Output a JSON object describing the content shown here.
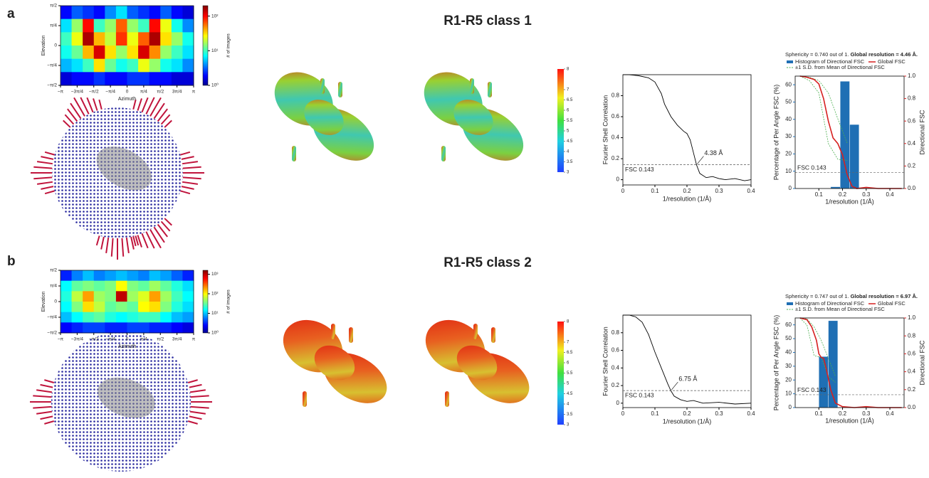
{
  "panel_labels": [
    "a",
    "b"
  ],
  "panel_titles": [
    "R1-R5 class 1",
    "R1-R5 class 2"
  ],
  "chart_data": [
    {
      "type": "heatmap",
      "xlabel": "Azimuth",
      "ylabel": "Elevation",
      "colorbar_label": "# of images",
      "xlim": [
        -3.14159,
        3.14159
      ],
      "xticks": [
        {
          "value": -3.14159,
          "label": "−π"
        },
        {
          "value": -2.35619,
          "label": "−3π/4"
        },
        {
          "value": -1.5708,
          "label": "−π/2"
        },
        {
          "value": -0.7854,
          "label": "−π/4"
        },
        0,
        {
          "value": 0.7854,
          "label": "π/4"
        },
        {
          "value": 1.5708,
          "label": "π/2"
        },
        {
          "value": 2.35619,
          "label": "3π/4"
        },
        {
          "value": 3.14159,
          "label": "π"
        }
      ],
      "ylim": [
        -1.5708,
        1.5708
      ],
      "yticks": [
        {
          "value": -1.5708,
          "label": "−π/2"
        },
        {
          "value": -0.7854,
          "label": "−π/4"
        },
        0,
        {
          "value": 0.7854,
          "label": "π/4"
        },
        {
          "value": 1.5708,
          "label": "π/2"
        }
      ],
      "clim": [
        0,
        2.3
      ],
      "colorbar_ticks": [
        {
          "value": 0,
          "label": "10⁰"
        },
        {
          "value": 1,
          "label": "10¹"
        },
        {
          "value": 2,
          "label": "10²"
        }
      ],
      "values": [
        [
          0.3,
          0.5,
          0.4,
          0.3,
          0.6,
          0.8,
          0.5,
          0.4,
          0.3,
          0.5,
          0.3,
          0.2
        ],
        [
          0.8,
          1.2,
          2.0,
          1.0,
          1.2,
          1.8,
          1.2,
          1.0,
          2.0,
          1.4,
          0.9,
          0.6
        ],
        [
          1.0,
          1.4,
          2.2,
          1.6,
          1.3,
          1.9,
          1.4,
          1.8,
          2.2,
          1.5,
          1.2,
          0.9
        ],
        [
          0.9,
          1.1,
          1.6,
          2.1,
          1.5,
          1.2,
          1.5,
          2.1,
          1.7,
          1.2,
          1.0,
          0.8
        ],
        [
          0.7,
          0.8,
          1.0,
          1.5,
          1.1,
          0.9,
          1.0,
          1.4,
          1.2,
          0.9,
          0.8,
          0.6
        ],
        [
          0.2,
          0.3,
          0.3,
          0.4,
          0.3,
          0.3,
          0.4,
          0.4,
          0.3,
          0.3,
          0.2,
          0.2
        ]
      ]
    },
    {
      "type": "colorbar",
      "lim": [
        3,
        8
      ],
      "ticks": [
        3,
        3.5,
        4,
        4.5,
        5,
        5.5,
        6,
        6.5,
        7,
        8
      ]
    },
    {
      "type": "line",
      "xlabel": "1/resolution (1/Å)",
      "ylabel": "Fourier Shell Correlation",
      "color": "#000000",
      "xlim": [
        0,
        0.4
      ],
      "xticks": [
        0,
        0.1,
        0.2,
        0.3,
        0.4
      ],
      "ylim": [
        -0.05,
        1.0
      ],
      "yticks": [
        0,
        0.2,
        0.4,
        0.6,
        0.8
      ],
      "threshold": {
        "value": 0.143,
        "label": "FSC 0.143"
      },
      "resolution_label": "4.38 Å",
      "x": [
        0,
        0.02,
        0.05,
        0.08,
        0.1,
        0.12,
        0.13,
        0.15,
        0.17,
        0.19,
        0.2,
        0.21,
        0.22,
        0.23,
        0.24,
        0.26,
        0.28,
        0.3,
        0.32,
        0.35,
        0.38,
        0.4
      ],
      "values": [
        1,
        1,
        0.99,
        0.97,
        0.93,
        0.82,
        0.72,
        0.6,
        0.52,
        0.46,
        0.44,
        0.38,
        0.26,
        0.14,
        0.06,
        0.02,
        0.03,
        0.01,
        0.0,
        0.01,
        -0.01,
        0
      ]
    },
    {
      "type": "dfsc",
      "title": "Sphericity = 0.740 out of 1. ",
      "title_bold": "Global resolution = 4.46 Å.",
      "xlabel": "1/resolution (1/Å)",
      "ylabel": "Percentage of Per Angle FSC (%)",
      "y2label": "Directional FSC",
      "xlim": [
        0,
        0.46
      ],
      "xticks": [
        0.1,
        0.2,
        0.3,
        0.4
      ],
      "ylim": [
        0,
        65
      ],
      "yticks": [
        0,
        10,
        20,
        30,
        40,
        50,
        60
      ],
      "y2lim": [
        0,
        1.0
      ],
      "y2ticks": [
        {
          "value": 0,
          "label": "0.0"
        },
        0.2,
        0.4,
        0.6,
        0.8,
        {
          "value": 1,
          "label": "1.0"
        }
      ],
      "threshold": {
        "value": 0.143,
        "label": "FSC 0.143"
      },
      "histogram": {
        "name": "Histogram of Directional FSC",
        "color": "#1f6fb4",
        "bins": [
          0.15,
          0.19,
          0.23,
          0.27
        ],
        "counts": [
          1,
          62,
          37
        ]
      },
      "series": [
        {
          "name": "Global FSC",
          "color": "#d62020",
          "axis": "y2",
          "x": [
            0.02,
            0.05,
            0.08,
            0.1,
            0.12,
            0.14,
            0.16,
            0.18,
            0.2,
            0.22,
            0.24,
            0.26,
            0.3,
            0.35,
            0.4,
            0.45
          ],
          "values": [
            1,
            0.99,
            0.97,
            0.93,
            0.8,
            0.6,
            0.45,
            0.4,
            0.3,
            0.12,
            0.02,
            0.0,
            0.01,
            0.0,
            0.0,
            0.0
          ]
        }
      ],
      "band": {
        "name": "±1 S.D. from Mean of Directional FSC",
        "color": "#4caf50",
        "x": [
          0.02,
          0.06,
          0.1,
          0.14,
          0.18,
          0.22
        ],
        "upper": [
          1,
          0.99,
          0.96,
          0.85,
          0.62,
          0.4
        ],
        "lower": [
          1,
          0.96,
          0.85,
          0.4,
          0.26,
          0.25
        ]
      }
    },
    {
      "type": "heatmap",
      "xlabel": "Azimuth",
      "ylabel": "Elevation",
      "colorbar_label": "# of images",
      "xlim": [
        -3.14159,
        3.14159
      ],
      "xticks": [
        {
          "value": -3.14159,
          "label": "−π"
        },
        {
          "value": -2.35619,
          "label": "−3π/4"
        },
        {
          "value": -1.5708,
          "label": "−π/2"
        },
        {
          "value": -0.7854,
          "label": "−π/4"
        },
        0,
        {
          "value": 0.7854,
          "label": "π/4"
        },
        {
          "value": 1.5708,
          "label": "π/2"
        },
        {
          "value": 2.35619,
          "label": "3π/4"
        },
        {
          "value": 3.14159,
          "label": "π"
        }
      ],
      "ylim": [
        -1.5708,
        1.5708
      ],
      "yticks": [
        {
          "value": -1.5708,
          "label": "−π/2"
        },
        {
          "value": -0.7854,
          "label": "−π/4"
        },
        0,
        {
          "value": 0.7854,
          "label": "π/4"
        },
        {
          "value": 1.5708,
          "label": "π/2"
        }
      ],
      "clim": [
        0,
        3.2
      ],
      "colorbar_ticks": [
        {
          "value": 0,
          "label": "10⁰"
        },
        {
          "value": 1,
          "label": "10¹"
        },
        {
          "value": 2,
          "label": "10²"
        },
        {
          "value": 3,
          "label": "10³"
        }
      ],
      "values": [
        [
          0.5,
          0.8,
          1.0,
          0.8,
          0.9,
          1.0,
          0.9,
          0.8,
          1.0,
          0.9,
          0.7,
          0.5
        ],
        [
          1.2,
          1.5,
          1.6,
          1.5,
          1.6,
          2.0,
          1.6,
          1.5,
          1.7,
          1.5,
          1.3,
          1.1
        ],
        [
          1.3,
          1.8,
          2.3,
          1.7,
          1.6,
          3.0,
          1.7,
          1.9,
          2.3,
          1.7,
          1.4,
          1.2
        ],
        [
          1.2,
          1.6,
          2.1,
          1.8,
          1.5,
          1.6,
          1.5,
          2.0,
          2.1,
          1.6,
          1.3,
          1.1
        ],
        [
          1.0,
          1.2,
          1.4,
          1.5,
          1.3,
          1.2,
          1.3,
          1.4,
          1.4,
          1.2,
          1.0,
          0.9
        ],
        [
          0.4,
          0.5,
          0.6,
          0.6,
          0.5,
          0.5,
          0.6,
          0.6,
          0.5,
          0.5,
          0.4,
          0.3
        ]
      ]
    },
    {
      "type": "colorbar",
      "lim": [
        3,
        8
      ],
      "ticks": [
        3,
        3.5,
        4,
        4.5,
        5,
        5.5,
        6,
        6.5,
        7,
        8
      ]
    },
    {
      "type": "line",
      "xlabel": "1/resolution (1/Å)",
      "ylabel": "Fourier Shell Correlation",
      "color": "#000000",
      "xlim": [
        0,
        0.4
      ],
      "xticks": [
        0,
        0.1,
        0.2,
        0.3,
        0.4
      ],
      "ylim": [
        -0.05,
        1.0
      ],
      "yticks": [
        0,
        0.2,
        0.4,
        0.6,
        0.8
      ],
      "threshold": {
        "value": 0.143,
        "label": "FSC 0.143"
      },
      "resolution_label": "6.75 Å",
      "x": [
        0,
        0.02,
        0.04,
        0.06,
        0.08,
        0.1,
        0.12,
        0.14,
        0.15,
        0.16,
        0.18,
        0.2,
        0.22,
        0.25,
        0.3,
        0.35,
        0.4
      ],
      "values": [
        1,
        1,
        0.98,
        0.92,
        0.78,
        0.58,
        0.4,
        0.22,
        0.14,
        0.08,
        0.04,
        0.02,
        0.03,
        0.0,
        0.01,
        -0.01,
        0
      ]
    },
    {
      "type": "dfsc",
      "title": "Sphericity = 0.747 out of 1. ",
      "title_bold": "Global resolution = 6.97 Å.",
      "xlabel": "1/resolution (1/Å)",
      "ylabel": "Percentage of Per Angle FSC (%)",
      "y2label": "Directional FSC",
      "xlim": [
        0,
        0.46
      ],
      "xticks": [
        0.1,
        0.2,
        0.3,
        0.4
      ],
      "ylim": [
        0,
        65
      ],
      "yticks": [
        0,
        10,
        20,
        30,
        40,
        50,
        60
      ],
      "y2lim": [
        0,
        1.0
      ],
      "y2ticks": [
        {
          "value": 0,
          "label": "0.0"
        },
        0.2,
        0.4,
        0.6,
        0.8,
        {
          "value": 1,
          "label": "1.0"
        }
      ],
      "threshold": {
        "value": 0.143,
        "label": "FSC 0.143"
      },
      "histogram": {
        "name": "Histogram of Directional FSC",
        "color": "#1f6fb4",
        "bins": [
          0.1,
          0.14,
          0.18
        ],
        "counts": [
          37,
          63
        ]
      },
      "series": [
        {
          "name": "Global FSC",
          "color": "#d62020",
          "axis": "y2",
          "x": [
            0.02,
            0.05,
            0.07,
            0.09,
            0.1,
            0.11,
            0.12,
            0.13,
            0.15,
            0.17,
            0.2,
            0.25,
            0.3,
            0.35,
            0.4,
            0.45
          ],
          "values": [
            1,
            0.98,
            0.9,
            0.75,
            0.6,
            0.56,
            0.55,
            0.45,
            0.2,
            0.05,
            0.01,
            0.0,
            0.01,
            0.0,
            0.0,
            0.0
          ]
        }
      ],
      "band": {
        "name": "±1 S.D. from Mean of Directional FSC",
        "color": "#4caf50",
        "x": [
          0.02,
          0.05,
          0.08,
          0.11,
          0.14,
          0.17
        ],
        "upper": [
          1,
          0.99,
          0.9,
          0.75,
          0.55,
          0.35
        ],
        "lower": [
          1,
          0.92,
          0.58,
          0.56,
          0.35,
          0.28
        ]
      }
    }
  ]
}
